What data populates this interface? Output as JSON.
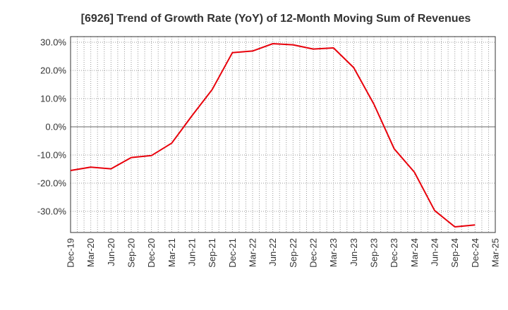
{
  "chart_data": {
    "type": "line",
    "title": "[6926]  Trend of Growth Rate (YoY) of 12-Month Moving Sum of Revenues",
    "xlabel": "",
    "ylabel": "",
    "categories": [
      "Dec-19",
      "Mar-20",
      "Jun-20",
      "Sep-20",
      "Dec-20",
      "Mar-21",
      "Jun-21",
      "Sep-21",
      "Dec-21",
      "Mar-22",
      "Jun-22",
      "Sep-22",
      "Dec-22",
      "Mar-23",
      "Jun-23",
      "Sep-23",
      "Dec-23",
      "Mar-24",
      "Jun-24",
      "Sep-24",
      "Dec-24",
      "Mar-25"
    ],
    "series": [
      {
        "color": "#e8000b",
        "values": [
          -15.5,
          -14.3,
          -14.9,
          -10.9,
          -10.2,
          -5.8,
          3.9,
          13.2,
          26.3,
          26.9,
          29.5,
          29.1,
          27.6,
          28.0,
          21.0,
          8.0,
          -7.8,
          -16.1,
          -29.7,
          -35.5,
          -34.8,
          null
        ]
      }
    ],
    "ylim": [
      -37.5,
      32
    ],
    "yticks": [
      30,
      20,
      10,
      0,
      -10,
      -20,
      -30
    ],
    "ytick_labels": [
      "30.0%",
      "20.0%",
      "10.0%",
      "0.0%",
      "-10.0%",
      "-20.0%",
      "-30.0%"
    ],
    "grid": true,
    "zero_line": true
  }
}
